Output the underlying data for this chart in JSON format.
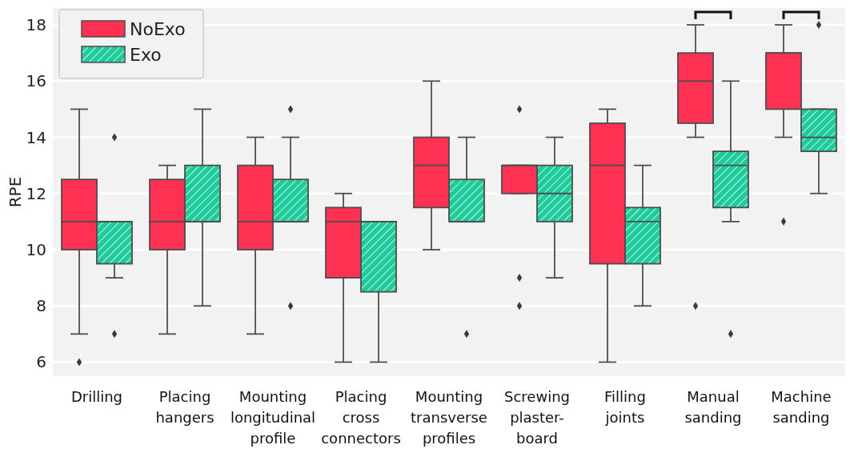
{
  "chart_data": {
    "type": "box",
    "ylabel": "RPE",
    "categories": [
      "Drilling",
      "Placing hangers",
      "Mounting longitudinal profile",
      "Placing cross connectors",
      "Mounting transverse profiles",
      "Screwing plaster-board",
      "Filling joints",
      "Manual sanding",
      "Machine sanding"
    ],
    "ylim": [
      5.5,
      18.6
    ],
    "yticks": [
      6,
      8,
      10,
      12,
      14,
      16,
      18
    ],
    "grid": "y",
    "legend": "top left",
    "series": [
      {
        "name": "NoExo",
        "color": "#fe3152",
        "boxes": [
          {
            "low": 7,
            "q1": 10,
            "median": 11,
            "q3": 12.5,
            "high": 15,
            "outliers": [
              6
            ]
          },
          {
            "low": 7,
            "q1": 10,
            "median": 11,
            "q3": 12.5,
            "high": 13
          },
          {
            "low": 7,
            "q1": 10,
            "median": 11,
            "q3": 13,
            "high": 14
          },
          {
            "low": 6,
            "q1": 9,
            "median": 11,
            "q3": 11.5,
            "high": 12
          },
          {
            "low": 10,
            "q1": 11.5,
            "median": 13,
            "q3": 14,
            "high": 16
          },
          {
            "low": 12,
            "q1": 12,
            "median": 13,
            "q3": 13,
            "high": 13,
            "outliers": [
              15,
              9,
              8
            ]
          },
          {
            "low": 6,
            "q1": 9.5,
            "median": 13,
            "q3": 14.5,
            "high": 15
          },
          {
            "low": 14,
            "q1": 14.5,
            "median": 16,
            "q3": 17,
            "high": 18,
            "outliers": [
              8
            ]
          },
          {
            "low": 14,
            "q1": 15,
            "median": 17,
            "q3": 17,
            "high": 18,
            "outliers": [
              11
            ]
          }
        ]
      },
      {
        "name": "Exo",
        "color": "#1ecc9b",
        "boxes": [
          {
            "low": 9,
            "q1": 9.5,
            "median": 11,
            "q3": 11,
            "high": 11,
            "outliers": [
              14,
              7
            ]
          },
          {
            "low": 8,
            "q1": 11,
            "median": 11,
            "q3": 13,
            "high": 15
          },
          {
            "low": 11,
            "q1": 11,
            "median": 11,
            "q3": 12.5,
            "high": 14,
            "outliers": [
              15,
              8
            ]
          },
          {
            "low": 6,
            "q1": 8.5,
            "median": 11,
            "q3": 11,
            "high": 11
          },
          {
            "low": 11,
            "q1": 11,
            "median": 11,
            "q3": 12.5,
            "high": 14,
            "outliers": [
              7
            ]
          },
          {
            "low": 9,
            "q1": 11,
            "median": 12,
            "q3": 13,
            "high": 14
          },
          {
            "low": 8,
            "q1": 9.5,
            "median": 11,
            "q3": 11.5,
            "high": 13
          },
          {
            "low": 11,
            "q1": 11.5,
            "median": 13,
            "q3": 13.5,
            "high": 16,
            "outliers": [
              7
            ]
          },
          {
            "low": 12,
            "q1": 13.5,
            "median": 14,
            "q3": 15,
            "high": 15,
            "outliers": [
              18
            ]
          }
        ]
      }
    ]
  }
}
